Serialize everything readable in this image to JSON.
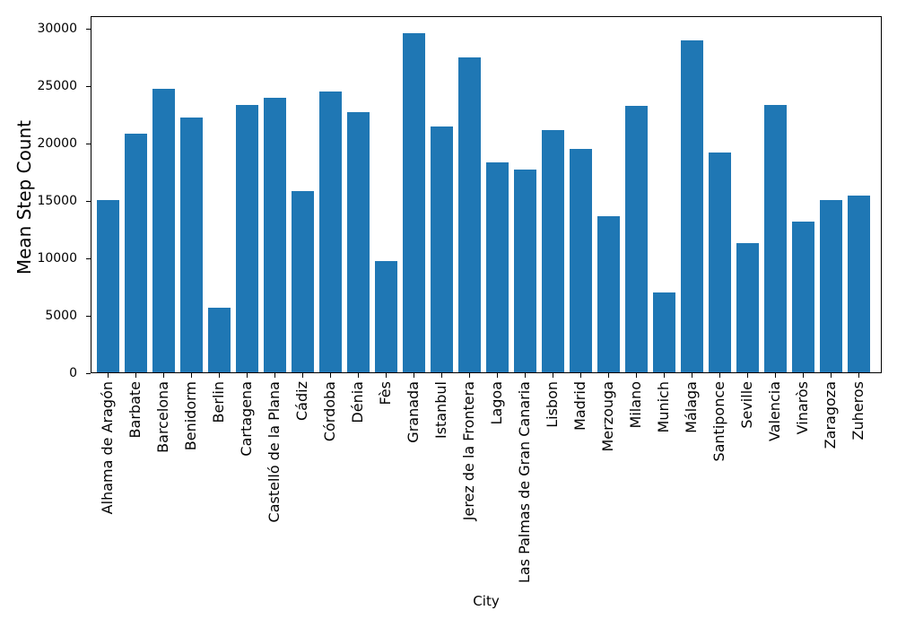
{
  "figure": {
    "background": "#ffffff",
    "text_color": "#000000"
  },
  "chart_data": {
    "type": "bar",
    "xlabel": "City",
    "ylabel": "Mean Step Count",
    "bar_color": "#1f77b4",
    "grid": false,
    "x_tick_rotation": 90,
    "ylim": [
      0,
      31100
    ],
    "yticks": [
      0,
      5000,
      10000,
      15000,
      20000,
      25000,
      30000
    ],
    "categories": [
      "Alhama de Aragón",
      "Barbate",
      "Barcelona",
      "Benidorm",
      "Berlin",
      "Cartagena",
      "Castelló de la Plana",
      "Cádiz",
      "Córdoba",
      "Dénia",
      "Fès",
      "Granada",
      "Istanbul",
      "Jerez de la Frontera",
      "Lagoa",
      "Las Palmas de Gran Canaria",
      "Lisbon",
      "Madrid",
      "Merzouga",
      "Milano",
      "Munich",
      "Málaga",
      "Santiponce",
      "Seville",
      "Valencia",
      "Vinaròs",
      "Zaragoza",
      "Zuheros"
    ],
    "values": [
      15100,
      20900,
      24800,
      22300,
      5700,
      23400,
      24000,
      15900,
      24500,
      22700,
      9800,
      29600,
      21500,
      27500,
      18400,
      17700,
      21200,
      19500,
      13700,
      23300,
      7000,
      29000,
      19200,
      11300,
      23400,
      13200,
      15100,
      15500
    ]
  }
}
